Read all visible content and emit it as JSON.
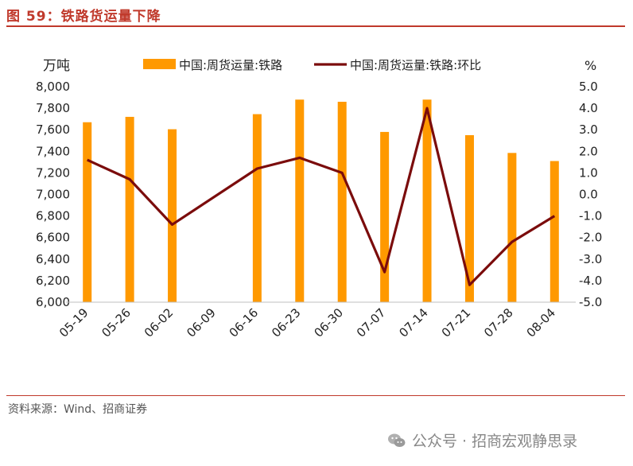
{
  "figure_title": "图 59：铁路货运量下降",
  "source": "资料来源：Wind、招商证券",
  "watermark": "公众号 · 招商宏观静思录",
  "colors": {
    "bar": "#FF9900",
    "line": "#7B0C0C",
    "accent": "#C0392B"
  },
  "chart_data": {
    "type": "bar+line",
    "categories": [
      "05-19",
      "05-26",
      "06-02",
      "06-09",
      "06-16",
      "06-23",
      "06-30",
      "07-07",
      "07-14",
      "07-21",
      "07-28",
      "08-04"
    ],
    "left_axis": {
      "unit": "万吨",
      "ylim": [
        6000,
        8000
      ],
      "ticks": [
        "8,000",
        "7,800",
        "7,600",
        "7,400",
        "7,200",
        "7,000",
        "6,800",
        "6,600",
        "6,400",
        "6,200",
        "6,000"
      ]
    },
    "right_axis": {
      "unit": "%",
      "ylim": [
        -5.0,
        5.0
      ],
      "ticks": [
        "5.0",
        "4.0",
        "3.0",
        "2.0",
        "1.0",
        "0.0",
        "-1.0",
        "-2.0",
        "-3.0",
        "-4.0",
        "-5.0"
      ]
    },
    "series": [
      {
        "name": "中国:周货运量:铁路",
        "type": "bar",
        "axis": "left",
        "values": [
          7670,
          7720,
          7605,
          null,
          7745,
          7880,
          7860,
          7580,
          7880,
          7550,
          7385,
          7310
        ]
      },
      {
        "name": "中国:周货运量:铁路:环比",
        "type": "line",
        "axis": "right",
        "values": [
          1.6,
          0.7,
          -1.4,
          null,
          1.2,
          1.7,
          1.0,
          -3.6,
          4.0,
          -4.2,
          -2.2,
          -1.0
        ]
      }
    ],
    "grid": false,
    "legend_position": "top"
  }
}
